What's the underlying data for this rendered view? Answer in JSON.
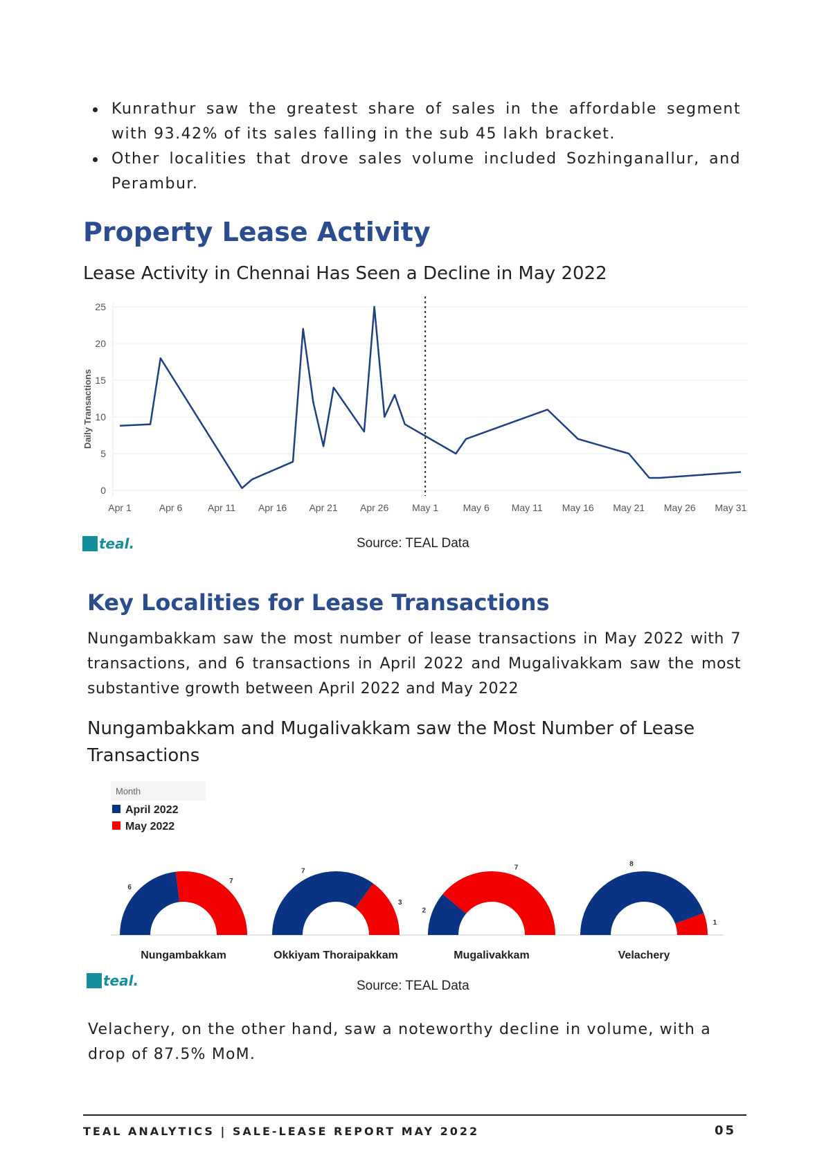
{
  "bullets": [
    "Kunrathur saw the greatest share of sales in the affordable segment with 93.42% of its sales falling in the sub 45 lakh bracket.",
    "Other localities that drove sales volume included Sozhinganallur, and Perambur."
  ],
  "lease_section": {
    "heading": "Property Lease Activity",
    "chart_title": "Lease Activity in Chennai Has Seen a Decline in May 2022",
    "source": "Source: TEAL Data",
    "logo_text": "teal."
  },
  "localities_section": {
    "heading": "Key Localities for Lease Transactions",
    "paragraph": "Nungambakkam saw the most number of lease transactions in May 2022 with 7 transactions, and 6 transactions in April 2022 and Mugalivakkam saw the most substantive growth between April 2022 and May 2022",
    "chart_title": "Nungambakkam and Mugalivakkam saw the Most Number of Lease Transactions",
    "source": "Source: TEAL Data",
    "logo_text": "teal."
  },
  "closing_paragraph": "Velachery, on the other hand, saw a noteworthy decline in volume, with a drop of 87.5% MoM.",
  "footer": {
    "left": "TEAL ANALYTICS | SALE-LEASE REPORT MAY 2022",
    "page": "05"
  },
  "colors": {
    "heading": "#2b4c8e",
    "line": "#1f3f86",
    "april": "#0a3384",
    "may": "#f20000",
    "logo": "#138e9a"
  },
  "chart_data": [
    {
      "type": "line",
      "title": "",
      "ylabel": "Daily Transactions",
      "xlabel": "",
      "ylim": [
        0,
        25
      ],
      "yticks": [
        0,
        5,
        10,
        15,
        20,
        25
      ],
      "xlim": [
        "2022-04-01",
        "2022-06-01"
      ],
      "xticks": [
        "Apr 1",
        "Apr 6",
        "Apr 11",
        "Apr 16",
        "Apr 21",
        "Apr 26",
        "May 1",
        "May 6",
        "May 11",
        "May 16",
        "May 21",
        "May 26",
        "May 31"
      ],
      "xtick_dates": [
        "2022-04-01",
        "2022-04-06",
        "2022-04-11",
        "2022-04-16",
        "2022-04-21",
        "2022-04-26",
        "2022-05-01",
        "2022-05-06",
        "2022-05-11",
        "2022-05-16",
        "2022-05-21",
        "2022-05-26",
        "2022-05-31"
      ],
      "reference_line": "2022-05-01",
      "grid": true,
      "series": [
        {
          "points": [
            [
              "2022-04-01",
              8.8
            ],
            [
              "2022-04-04",
              9
            ],
            [
              "2022-04-05",
              18
            ],
            [
              "2022-04-13",
              0.3
            ],
            [
              "2022-04-14",
              1.5
            ],
            [
              "2022-04-18",
              3.9
            ],
            [
              "2022-04-19",
              22
            ],
            [
              "2022-04-20",
              12
            ],
            [
              "2022-04-21",
              6
            ],
            [
              "2022-04-22",
              14
            ],
            [
              "2022-04-25",
              8
            ],
            [
              "2022-04-26",
              25
            ],
            [
              "2022-04-27",
              10
            ],
            [
              "2022-04-28",
              13
            ],
            [
              "2022-04-29",
              9
            ],
            [
              "2022-05-04",
              5
            ],
            [
              "2022-05-05",
              7
            ],
            [
              "2022-05-13",
              11
            ],
            [
              "2022-05-16",
              7
            ],
            [
              "2022-05-21",
              5
            ],
            [
              "2022-05-23",
              1.7
            ],
            [
              "2022-05-24",
              1.7
            ],
            [
              "2022-06-01",
              2.5
            ]
          ]
        }
      ]
    },
    {
      "type": "pie",
      "title": "",
      "legend_title": "Month",
      "legend_position": "top-left",
      "series_names": [
        "April 2022",
        "May 2022"
      ],
      "categories": [
        "Nungambakkam",
        "Okkiyam Thoraipakkam",
        "Mugalivakkam",
        "Velachery"
      ],
      "series": [
        {
          "name": "April 2022",
          "values": [
            6,
            7,
            2,
            8
          ]
        },
        {
          "name": "May 2022",
          "values": [
            7,
            3,
            7,
            1
          ]
        }
      ]
    }
  ]
}
